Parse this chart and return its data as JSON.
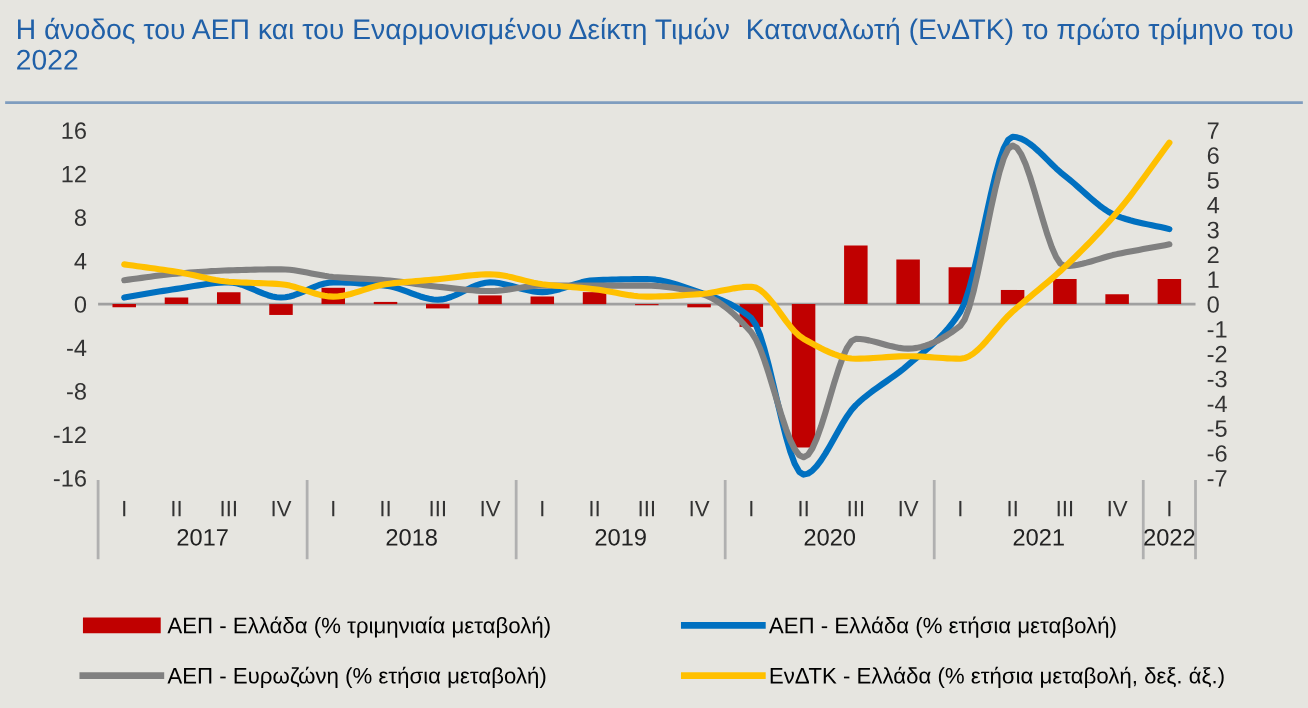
{
  "chart_data": {
    "type": "bar",
    "title": "Η άνοδος του ΑΕΠ και του Εναρμονισμένου Δείκτη Τιμών  Καταναλωτή (ΕνΔΤΚ) το πρώτο τρίμηνο του 2022",
    "categories": [
      "I",
      "II",
      "III",
      "IV",
      "I",
      "II",
      "III",
      "IV",
      "I",
      "II",
      "III",
      "IV",
      "I",
      "II",
      "III",
      "IV",
      "I",
      "II",
      "III",
      "IV",
      "I"
    ],
    "annotations": [
      "2017",
      "2018",
      "2019",
      "2020",
      "2021",
      "2022"
    ],
    "series": [
      {
        "name": "ΑΕΠ - Ελλάδα (% τριμηνιαία μεταβολή)",
        "color": "#c00000",
        "values": [
          -0.3,
          0.6,
          1.1,
          -1.0,
          1.5,
          0.2,
          -0.4,
          0.8,
          0.7,
          1.1,
          -0.1,
          -0.3,
          -2.1,
          -13.2,
          5.4,
          4.1,
          3.4,
          1.3,
          2.3,
          0.9,
          2.3
        ]
      },
      {
        "name": "ΑΕΠ - Ελλάδα (% ετήσια μεταβολή)",
        "type": "line",
        "color": "#0070c0",
        "values": [
          0.6,
          1.4,
          2.0,
          0.6,
          2.0,
          1.7,
          0.4,
          2.0,
          1.1,
          2.2,
          2.3,
          1.1,
          -1.3,
          -15.7,
          -9.3,
          -5.6,
          -0.7,
          15.4,
          11.8,
          8.1,
          6.9
        ]
      },
      {
        "name": "ΑΕΠ - Ευρωζώνη (% ετήσια μεταβολή)",
        "type": "line",
        "color": "#808080",
        "values": [
          2.2,
          2.8,
          3.1,
          3.2,
          2.5,
          2.2,
          1.6,
          1.2,
          1.7,
          1.7,
          1.7,
          1.0,
          -2.6,
          -14.1,
          -3.2,
          -4.1,
          -2.0,
          14.6,
          3.5,
          4.6,
          5.5
        ]
      },
      {
        "name": "ΕνΔΤΚ - Ελλάδα (% ετήσια μεταβολή, δεξ. άξ.)",
        "type": "line",
        "axis": "y2",
        "color": "#ffc000",
        "values": [
          1.6,
          1.3,
          0.9,
          0.8,
          0.3,
          0.8,
          1.0,
          1.2,
          0.8,
          0.6,
          0.3,
          0.4,
          0.7,
          -1.4,
          -2.2,
          -2.1,
          -2.2,
          -0.3,
          1.5,
          3.7,
          6.5
        ]
      }
    ],
    "ylim": [
      -16,
      16
    ],
    "yticks": [
      -16,
      -12,
      -8,
      -4,
      0,
      4,
      8,
      12,
      16
    ],
    "y2lim": [
      -7,
      7
    ],
    "y2ticks": [
      -7,
      -6,
      -5,
      -4,
      -3,
      -2,
      -1,
      0,
      1,
      2,
      3,
      4,
      5,
      6,
      7
    ],
    "ref_lines": [
      {
        "axis": "y",
        "value": 0,
        "color": "#a0a0a0"
      }
    ],
    "grid": false,
    "legend": "bottom"
  }
}
